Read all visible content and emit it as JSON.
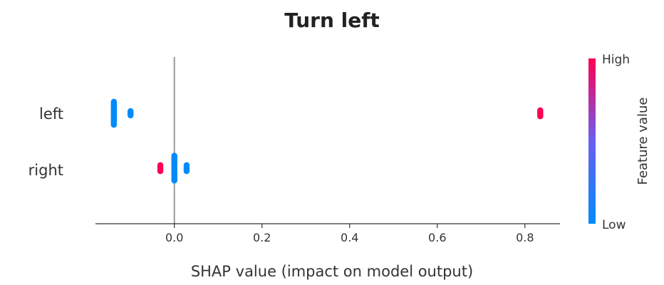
{
  "chart_data": {
    "type": "scatter",
    "title": "Turn left",
    "xlabel": "SHAP value (impact on model output)",
    "xlim": [
      -0.18,
      0.88
    ],
    "xticks": [
      0.0,
      0.2,
      0.4,
      0.6,
      0.8
    ],
    "xtick_labels": [
      "0.0",
      "0.2",
      "0.4",
      "0.6",
      "0.8"
    ],
    "features": [
      "left",
      "right"
    ],
    "colorbar": {
      "title": "Feature value",
      "high_label": "High",
      "low_label": "Low"
    },
    "colors": {
      "high": "#ff0052",
      "low": "#008bfb",
      "zero_line": "#999999"
    },
    "points": [
      {
        "feature": "left",
        "x": -0.138,
        "level": "low",
        "count": 28
      },
      {
        "feature": "left",
        "x": -0.1,
        "level": "low",
        "count": 6
      },
      {
        "feature": "left",
        "x": 0.835,
        "level": "high",
        "count": 8
      },
      {
        "feature": "right",
        "x": -0.032,
        "level": "high",
        "count": 8
      },
      {
        "feature": "right",
        "x": 0.0,
        "level": "low",
        "count": 30
      },
      {
        "feature": "right",
        "x": 0.028,
        "level": "low",
        "count": 8
      }
    ]
  }
}
